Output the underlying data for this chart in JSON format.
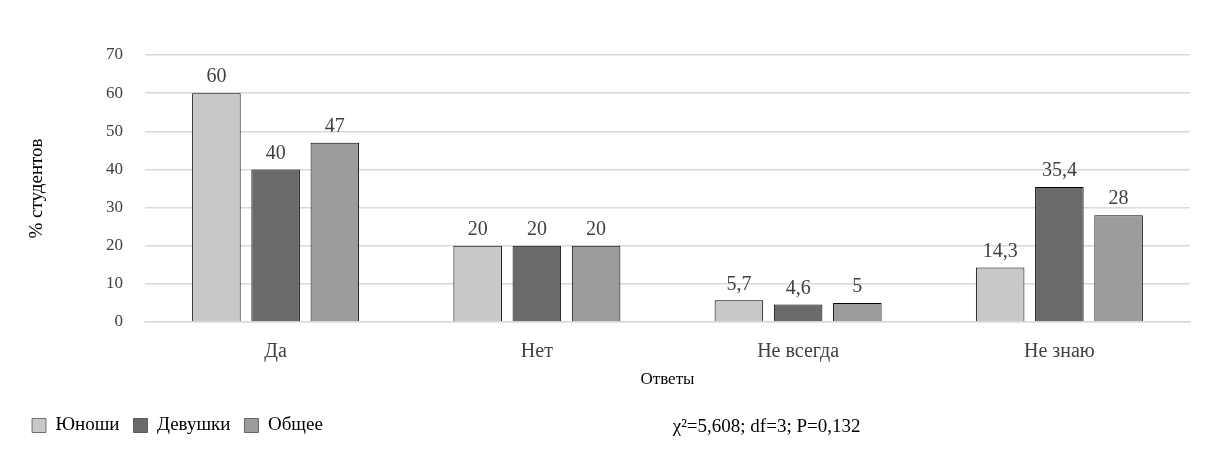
{
  "chart_data": {
    "type": "bar",
    "xlabel": "Ответы",
    "ylabel": "% студентов",
    "categories": [
      "Да",
      "Нет",
      "Не всегда",
      "Не знаю"
    ],
    "series": [
      {
        "name": "Юноши",
        "color": "#c8c8c8",
        "values": [
          60,
          20,
          5.7,
          14.3
        ],
        "value_labels": [
          "60",
          "20",
          "5,7",
          "14,3"
        ]
      },
      {
        "name": "Девушки",
        "color": "#6a6a6a",
        "values": [
          40,
          20,
          4.6,
          35.4
        ],
        "value_labels": [
          "40",
          "20",
          "4,6",
          "35,4"
        ]
      },
      {
        "name": "Общее",
        "color": "#9c9c9c",
        "values": [
          47,
          20,
          5,
          28
        ],
        "value_labels": [
          "47",
          "20",
          "5",
          "28"
        ]
      }
    ],
    "ylim": [
      0,
      70
    ],
    "yticks": [
      0,
      10,
      20,
      30,
      40,
      50,
      60,
      70
    ],
    "grid": "y",
    "legend": "bottom left",
    "annotations": [
      "χ²=5,608; df=3; P=0,132"
    ]
  }
}
